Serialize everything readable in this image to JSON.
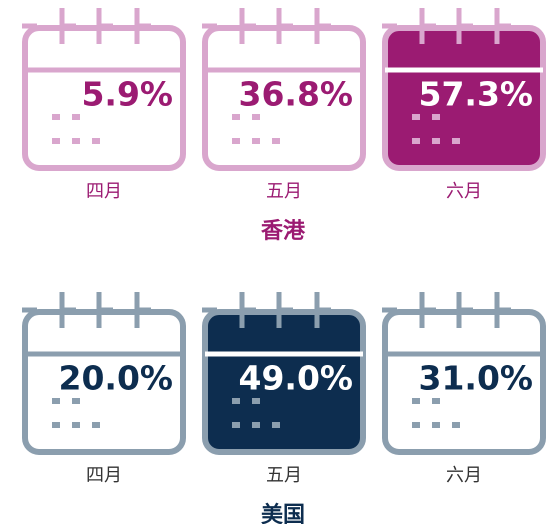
{
  "chart_data": [
    {
      "type": "pictogram",
      "title": "香港",
      "categories": [
        "四月",
        "五月",
        "六月"
      ],
      "values": [
        5.9,
        36.8,
        57.3
      ],
      "value_labels": [
        "5.9%",
        "36.8%",
        "57.3%"
      ],
      "color": "#9b1b72",
      "outline_color": "#d9a6cd",
      "month_color": "#9b1b72"
    },
    {
      "type": "pictogram",
      "title": "美国",
      "categories": [
        "四月",
        "五月",
        "六月"
      ],
      "values": [
        20.0,
        49.0,
        31.0
      ],
      "value_labels": [
        "20.0%",
        "49.0%",
        "31.0%"
      ],
      "color": "#0d2d4f",
      "outline_color": "#8b9eae",
      "month_color": "#333333"
    }
  ]
}
